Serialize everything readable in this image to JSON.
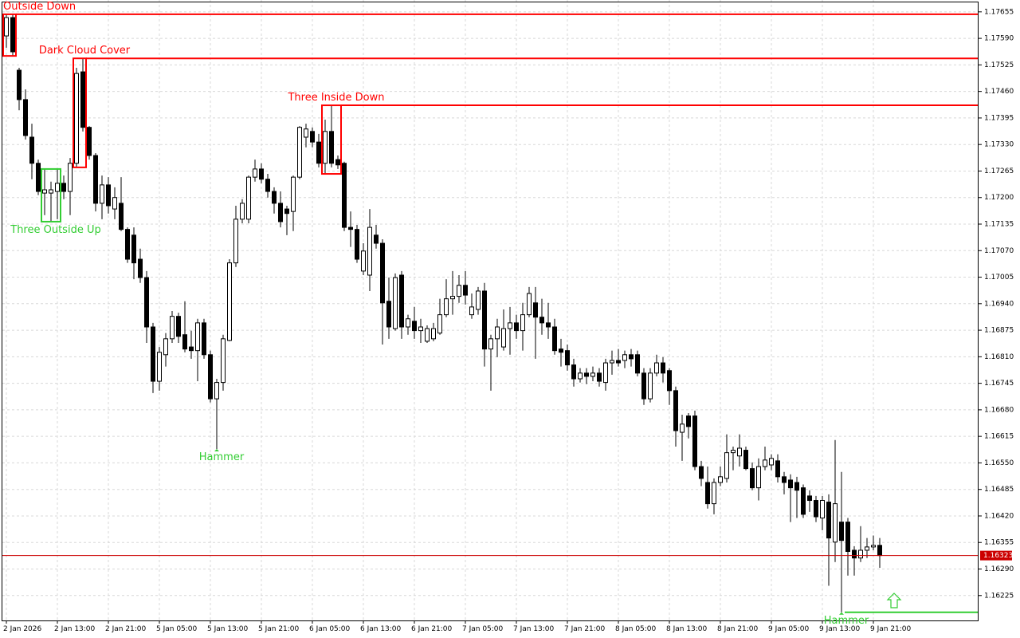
{
  "chart_data": {
    "type": "candlestick",
    "categories": [
      "2 Jan 2026",
      null,
      null,
      null,
      null,
      null,
      null,
      null,
      "2 Jan 13:00",
      null,
      null,
      null,
      null,
      null,
      null,
      null,
      "2 Jan 21:00",
      null,
      null,
      null,
      null,
      null,
      null,
      null,
      "5 Jan 05:00",
      null,
      null,
      null,
      null,
      null,
      null,
      null,
      "5 Jan 13:00",
      null,
      null,
      null,
      null,
      null,
      null,
      null,
      "5 Jan 21:00",
      null,
      null,
      null,
      null,
      null,
      null,
      null,
      "6 Jan 05:00",
      null,
      null,
      null,
      null,
      null,
      null,
      null,
      "6 Jan 13:00",
      null,
      null,
      null,
      null,
      null,
      null,
      null,
      "6 Jan 21:00",
      null,
      null,
      null,
      null,
      null,
      null,
      null,
      "7 Jan 05:00",
      null,
      null,
      null,
      null,
      null,
      null,
      null,
      "7 Jan 13:00",
      null,
      null,
      null,
      null,
      null,
      null,
      null,
      "7 Jan 21:00",
      null,
      null,
      null,
      null,
      null,
      null,
      null,
      "8 Jan 05:00",
      null,
      null,
      null,
      null,
      null,
      null,
      null,
      "8 Jan 13:00",
      null,
      null,
      null,
      null,
      null,
      null,
      null,
      "8 Jan 21:00",
      null,
      null,
      null,
      null,
      null,
      null,
      null,
      "9 Jan 05:00",
      null,
      null,
      null,
      null,
      null,
      null,
      null,
      "9 Jan 13:00",
      null,
      null,
      null,
      null,
      null,
      null,
      null,
      "9 Jan 21:00",
      null
    ],
    "ohlc": [
      [
        1.17596,
        1.17649,
        1.17567,
        1.17641
      ],
      [
        1.17641,
        1.17649,
        1.17547,
        1.17557
      ],
      [
        1.17512,
        1.17518,
        1.17414,
        1.1744
      ],
      [
        1.1744,
        1.17465,
        1.17342,
        1.17352
      ],
      [
        1.17348,
        1.17381,
        1.17245,
        1.17284
      ],
      [
        1.17284,
        1.17293,
        1.17206,
        1.17215
      ],
      [
        1.17211,
        1.1727,
        1.17157,
        1.17219
      ],
      [
        1.17211,
        1.17239,
        1.17141,
        1.17219
      ],
      [
        1.17215,
        1.1727,
        1.17147,
        1.17235
      ],
      [
        1.17235,
        1.17254,
        1.17196,
        1.17215
      ],
      [
        1.17215,
        1.17297,
        1.17157,
        1.17284
      ],
      [
        1.17284,
        1.17518,
        1.17274,
        1.17504
      ],
      [
        1.17508,
        1.17541,
        1.17362,
        1.17372
      ],
      [
        1.17372,
        1.17375,
        1.17293,
        1.17303
      ],
      [
        1.17303,
        1.17309,
        1.17166,
        1.17186
      ],
      [
        1.17186,
        1.17254,
        1.17147,
        1.17231
      ],
      [
        1.17231,
        1.1725,
        1.17161,
        1.1718
      ],
      [
        1.17172,
        1.17225,
        1.17147,
        1.172
      ],
      [
        1.17186,
        1.1725,
        1.17118,
        1.17122
      ],
      [
        1.17122,
        1.17127,
        1.1704,
        1.17049
      ],
      [
        1.17108,
        1.17127,
        1.17,
        1.1704
      ],
      [
        1.17049,
        1.17075,
        1.16991,
        1.17004
      ],
      [
        1.17004,
        1.1702,
        1.16844,
        1.16883
      ],
      [
        1.16883,
        1.16893,
        1.16721,
        1.1675
      ],
      [
        1.1675,
        1.16834,
        1.16727,
        1.16821
      ],
      [
        1.16815,
        1.16868,
        1.16786,
        1.16854
      ],
      [
        1.16854,
        1.16922,
        1.16844,
        1.16909
      ],
      [
        1.16909,
        1.16918,
        1.16844,
        1.1686
      ],
      [
        1.16864,
        1.16946,
        1.16821,
        1.16829
      ],
      [
        1.16834,
        1.16874,
        1.16805,
        1.16825
      ],
      [
        1.16825,
        1.16903,
        1.1675,
        1.16893
      ],
      [
        1.16893,
        1.16903,
        1.16805,
        1.16815
      ],
      [
        1.16815,
        1.16825,
        1.16698,
        1.16707
      ],
      [
        1.16707,
        1.16756,
        1.16584,
        1.16747
      ],
      [
        1.16747,
        1.16864,
        1.16727,
        1.16854
      ],
      [
        1.1685,
        1.17049,
        1.16848,
        1.1704
      ],
      [
        1.1704,
        1.1718,
        1.1703,
        1.17147
      ],
      [
        1.17147,
        1.17196,
        1.17137,
        1.17186
      ],
      [
        1.17147,
        1.17254,
        1.17137,
        1.1725
      ],
      [
        1.1725,
        1.17293,
        1.17239,
        1.1727
      ],
      [
        1.1727,
        1.17284,
        1.17235,
        1.17245
      ],
      [
        1.17245,
        1.17258,
        1.172,
        1.17215
      ],
      [
        1.17215,
        1.17225,
        1.17161,
        1.17186
      ],
      [
        1.17186,
        1.17215,
        1.17127,
        1.17141
      ],
      [
        1.17172,
        1.1718,
        1.17108,
        1.17161
      ],
      [
        1.17166,
        1.17254,
        1.17118,
        1.1725
      ],
      [
        1.1725,
        1.17375,
        1.17245,
        1.17372
      ],
      [
        1.17348,
        1.17381,
        1.17323,
        1.17368
      ],
      [
        1.17362,
        1.17372,
        1.17323,
        1.17336
      ],
      [
        1.17336,
        1.17356,
        1.17274,
        1.17284
      ],
      [
        1.17284,
        1.17391,
        1.17258,
        1.17362
      ],
      [
        1.17362,
        1.17426,
        1.17274,
        1.17284
      ],
      [
        1.17293,
        1.17303,
        1.1727,
        1.1728
      ],
      [
        1.17284,
        1.17288,
        1.17118,
        1.17127
      ],
      [
        1.17127,
        1.17166,
        1.17079,
        1.17122
      ],
      [
        1.17122,
        1.17133,
        1.1704,
        1.17049
      ],
      [
        1.1702,
        1.17088,
        1.1701,
        1.17069
      ],
      [
        1.1701,
        1.17172,
        1.16971,
        1.17127
      ],
      [
        1.17108,
        1.17133,
        1.17075,
        1.17088
      ],
      [
        1.17088,
        1.17098,
        1.1684,
        1.16942
      ],
      [
        1.16946,
        1.17004,
        1.16854,
        1.16883
      ],
      [
        1.16879,
        1.17014,
        1.16874,
        1.17004
      ],
      [
        1.1701,
        1.1702,
        1.16854,
        1.16883
      ],
      [
        1.16883,
        1.16913,
        1.16864,
        1.16903
      ],
      [
        1.16897,
        1.16932,
        1.16854,
        1.16874
      ],
      [
        1.16874,
        1.16903,
        1.16844,
        1.16883
      ],
      [
        1.16848,
        1.16887,
        1.16844,
        1.16879
      ],
      [
        1.16854,
        1.16893,
        1.16848,
        1.16879
      ],
      [
        1.16868,
        1.16952,
        1.16864,
        1.16913
      ],
      [
        1.16913,
        1.17,
        1.16907,
        1.16952
      ],
      [
        1.16952,
        1.1702,
        1.16913,
        1.16958
      ],
      [
        1.16958,
        1.1701,
        1.16942,
        1.16985
      ],
      [
        1.16985,
        1.1702,
        1.16938,
        1.16961
      ],
      [
        1.16913,
        1.16965,
        1.16903,
        1.16932
      ],
      [
        1.16926,
        1.16981,
        1.16913,
        1.16971
      ],
      [
        1.16971,
        1.16991,
        1.16786,
        1.16829
      ],
      [
        1.16829,
        1.16864,
        1.16727,
        1.16854
      ],
      [
        1.16854,
        1.16903,
        1.16809,
        1.16883
      ],
      [
        1.16834,
        1.16926,
        1.16825,
        1.16879
      ],
      [
        1.16879,
        1.16932,
        1.16815,
        1.16893
      ],
      [
        1.16893,
        1.16913,
        1.16854,
        1.16874
      ],
      [
        1.16874,
        1.16942,
        1.16825,
        1.16913
      ],
      [
        1.16913,
        1.16981,
        1.16907,
        1.16965
      ],
      [
        1.16942,
        1.16981,
        1.16805,
        1.16907
      ],
      [
        1.16907,
        1.16952,
        1.16864,
        1.16893
      ],
      [
        1.16893,
        1.16942,
        1.16854,
        1.16883
      ],
      [
        1.16883,
        1.16903,
        1.16815,
        1.16825
      ],
      [
        1.16829,
        1.16854,
        1.16786,
        1.16821
      ],
      [
        1.16825,
        1.1684,
        1.16776,
        1.1679
      ],
      [
        1.1679,
        1.16805,
        1.16737,
        1.16756
      ],
      [
        1.16756,
        1.16782,
        1.16747,
        1.1677
      ],
      [
        1.1677,
        1.16782,
        1.16743,
        1.16762
      ],
      [
        1.16762,
        1.16786,
        1.1675,
        1.1677
      ],
      [
        1.1677,
        1.16782,
        1.16737,
        1.1675
      ],
      [
        1.16747,
        1.16805,
        1.16727,
        1.16795
      ],
      [
        1.16795,
        1.16825,
        1.16766,
        1.16801
      ],
      [
        1.16801,
        1.16829,
        1.16786,
        1.16795
      ],
      [
        1.16801,
        1.16825,
        1.16782,
        1.16815
      ],
      [
        1.16815,
        1.16829,
        1.16786,
        1.16805
      ],
      [
        1.16815,
        1.16825,
        1.16762,
        1.1677
      ],
      [
        1.1677,
        1.16782,
        1.16692,
        1.16707
      ],
      [
        1.16707,
        1.16782,
        1.16698,
        1.1677
      ],
      [
        1.1677,
        1.16815,
        1.16762,
        1.16795
      ],
      [
        1.16795,
        1.16809,
        1.16747,
        1.1677
      ],
      [
        1.16776,
        1.16782,
        1.16692,
        1.16727
      ],
      [
        1.16727,
        1.16737,
        1.1659,
        1.16629
      ],
      [
        1.16625,
        1.16668,
        1.16555,
        1.16645
      ],
      [
        1.16665,
        1.16672,
        1.1661,
        1.16639
      ],
      [
        1.16665,
        1.16678,
        1.16532,
        1.16541
      ],
      [
        1.16541,
        1.16555,
        1.16493,
        1.16512
      ],
      [
        1.16502,
        1.16541,
        1.16438,
        1.1645
      ],
      [
        1.1645,
        1.16512,
        1.16424,
        1.16502
      ],
      [
        1.16502,
        1.16541,
        1.16493,
        1.16516
      ],
      [
        1.16512,
        1.1662,
        1.16502,
        1.16575
      ],
      [
        1.16575,
        1.1659,
        1.16532,
        1.16581
      ],
      [
        1.16567,
        1.1662,
        1.16541,
        1.16586
      ],
      [
        1.16581,
        1.1659,
        1.16532,
        1.16536
      ],
      [
        1.16536,
        1.16551,
        1.16483,
        1.16489
      ],
      [
        1.16489,
        1.16561,
        1.16458,
        1.16541
      ],
      [
        1.16541,
        1.1659,
        1.16532,
        1.16557
      ],
      [
        1.16545,
        1.16571,
        1.16532,
        1.16561
      ],
      [
        1.16555,
        1.16571,
        1.16502,
        1.16516
      ],
      [
        1.16516,
        1.16528,
        1.16473,
        1.16502
      ],
      [
        1.16508,
        1.16522,
        1.16405,
        1.16489
      ],
      [
        1.16502,
        1.16516,
        1.16415,
        1.16483
      ],
      [
        1.16489,
        1.16497,
        1.16415,
        1.16424
      ],
      [
        1.16469,
        1.16483,
        1.1643,
        1.16458
      ],
      [
        1.16458,
        1.16469,
        1.16405,
        1.16418
      ],
      [
        1.16415,
        1.16469,
        1.16385,
        1.16458
      ],
      [
        1.16454,
        1.16473,
        1.16249,
        1.16366
      ],
      [
        1.16356,
        1.16606,
        1.16307,
        1.1645
      ],
      [
        1.16405,
        1.16528,
        1.16184,
        1.1636
      ],
      [
        1.16405,
        1.16415,
        1.16274,
        1.16333
      ],
      [
        1.16336,
        1.16346,
        1.16274,
        1.16317
      ],
      [
        1.16317,
        1.16395,
        1.16307,
        1.16336
      ],
      [
        1.16336,
        1.16366,
        1.16317,
        1.16344
      ],
      [
        1.16344,
        1.16372,
        1.16336,
        1.16348
      ],
      [
        1.16348,
        1.16366,
        1.16293,
        1.16323
      ]
    ],
    "up_color": "#ffffff",
    "down_color": "#000000",
    "patterns": [
      {
        "label": "Outside Down",
        "color": "#ff0000",
        "from": 0,
        "to": 1,
        "direction": "down"
      },
      {
        "label": "Dark Cloud Cover",
        "color": "#ff0000",
        "from": 11,
        "to": 12,
        "direction": "down"
      },
      {
        "label": "Three Outside Up",
        "color": "#32cd32",
        "from": 6,
        "to": 8,
        "direction": "up"
      },
      {
        "label": "Hammer",
        "color": "#32cd32",
        "from": 33,
        "to": 33,
        "direction": "up"
      },
      {
        "label": "Three Inside Down",
        "color": "#ff0000",
        "from": 50,
        "to": 52,
        "direction": "down"
      },
      {
        "label": "Hammer",
        "color": "#32cd32",
        "from": 131,
        "to": 131,
        "direction": "up"
      }
    ],
    "last_price": 1.16323,
    "last_price_color": "#cc0000",
    "ylim": [
      1.16164,
      1.17684
    ],
    "yticks": [
      1.17655,
      {
        "value": 1.1759,
        "label": "1.17590"
      },
      1.17525,
      {
        "value": 1.1746,
        "label": "1.17460"
      },
      1.17395,
      {
        "value": 1.1733,
        "label": "1.17330"
      },
      1.17265,
      {
        "value": 1.172,
        "label": "1.17200"
      },
      1.17135,
      {
        "value": 1.1707,
        "label": "1.17070"
      },
      1.17005,
      {
        "value": 1.1694,
        "label": "1.16940"
      },
      1.16875,
      {
        "value": 1.1681,
        "label": "1.16810"
      },
      1.16745,
      {
        "value": 1.1668,
        "label": "1.16680"
      },
      1.16615,
      {
        "value": 1.1655,
        "label": "1.16550"
      },
      1.16485,
      {
        "value": 1.1642,
        "label": "1.16420"
      },
      1.16355,
      {
        "value": 1.1629,
        "label": "1.16290"
      },
      1.16225
    ],
    "grid": true
  }
}
